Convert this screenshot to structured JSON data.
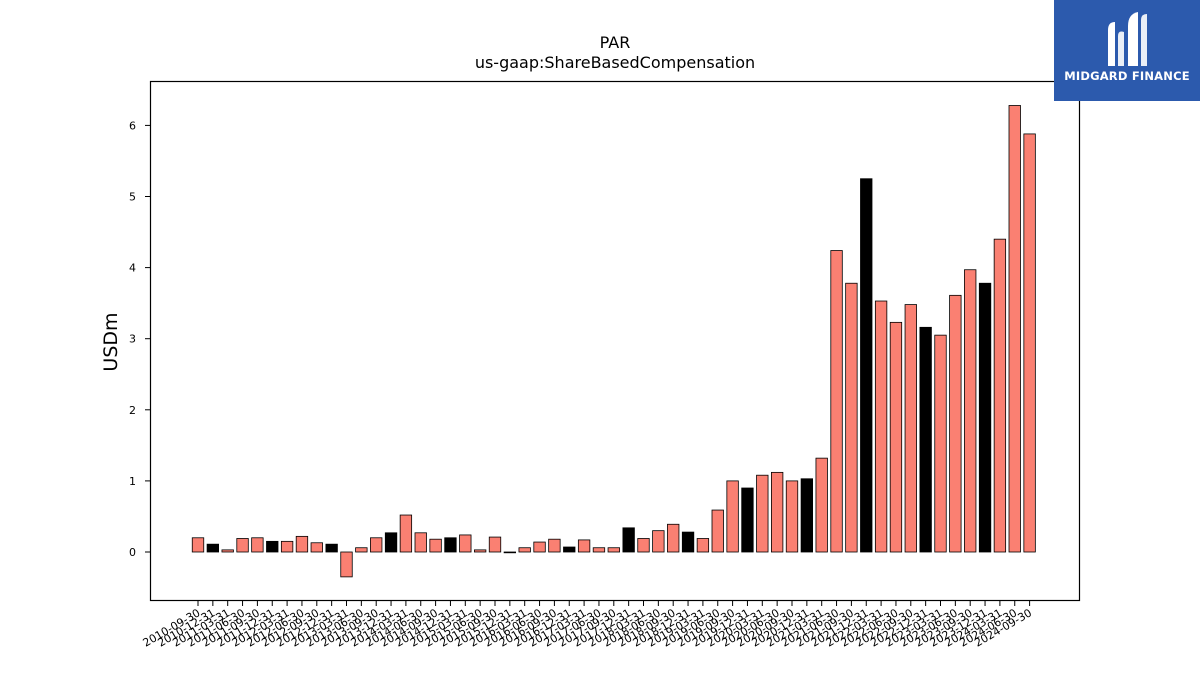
{
  "chart_data": {
    "type": "bar",
    "title": "PAR",
    "subtitle": "us-gaap:ShareBasedCompensation",
    "ylabel": "USDm",
    "ylim": [
      -0.68,
      6.62
    ],
    "yticks": [
      0,
      1,
      2,
      3,
      4,
      5,
      6
    ],
    "categories": [
      "2010-09-30",
      "2010-12-31",
      "2011-03-31",
      "2011-06-30",
      "2011-09-30",
      "2011-12-31",
      "2012-03-31",
      "2012-06-30",
      "2012-09-30",
      "2012-12-31",
      "2013-03-31",
      "2013-06-30",
      "2013-09-30",
      "2013-12-31",
      "2014-03-31",
      "2014-06-30",
      "2014-09-30",
      "2014-12-31",
      "2015-03-31",
      "2015-06-30",
      "2015-09-30",
      "2015-12-31",
      "2016-03-31",
      "2016-06-30",
      "2016-09-30",
      "2016-12-31",
      "2017-03-31",
      "2017-06-30",
      "2017-09-30",
      "2017-12-31",
      "2018-03-31",
      "2018-06-30",
      "2018-09-30",
      "2018-12-31",
      "2019-03-31",
      "2019-06-30",
      "2019-09-30",
      "2019-12-31",
      "2020-03-31",
      "2020-06-30",
      "2020-09-30",
      "2020-12-31",
      "2021-03-31",
      "2021-06-30",
      "2021-09-30",
      "2021-12-31",
      "2022-03-31",
      "2022-06-30",
      "2022-09-30",
      "2022-12-31",
      "2023-03-31",
      "2023-06-30",
      "2023-09-30",
      "2023-12-31",
      "2024-03-31",
      "2024-06-30",
      "2024-09-30"
    ],
    "values": [
      0.2,
      0.11,
      0.03,
      0.19,
      0.2,
      0.15,
      0.15,
      0.22,
      0.13,
      0.11,
      -0.35,
      0.06,
      0.2,
      0.27,
      0.52,
      0.27,
      0.18,
      0.2,
      0.24,
      0.03,
      0.21,
      0.0,
      0.06,
      0.14,
      0.18,
      0.07,
      0.17,
      0.06,
      0.06,
      0.34,
      0.19,
      0.3,
      0.39,
      0.28,
      0.19,
      0.59,
      1.0,
      0.9,
      1.08,
      1.12,
      1.0,
      1.03,
      1.32,
      4.24,
      3.78,
      5.25,
      3.53,
      3.23,
      3.48,
      3.16,
      3.05,
      3.61,
      3.97,
      3.78,
      4.4,
      6.28,
      5.88
    ],
    "highlight": [
      false,
      true,
      false,
      false,
      false,
      true,
      false,
      false,
      false,
      true,
      false,
      false,
      false,
      true,
      false,
      false,
      false,
      true,
      false,
      false,
      false,
      false,
      false,
      false,
      false,
      true,
      false,
      false,
      false,
      true,
      false,
      false,
      false,
      true,
      false,
      false,
      false,
      true,
      false,
      false,
      false,
      true,
      false,
      false,
      false,
      true,
      false,
      false,
      false,
      true,
      false,
      false,
      false,
      true,
      false,
      false,
      false
    ],
    "colors": {
      "bar": "#fa8072",
      "highlight_bar": "#000000",
      "edge": "#000000"
    },
    "grid": false,
    "legend": "none"
  },
  "logo": {
    "text": "MIDGARD FINANCE",
    "bg": "#2c5aad",
    "icon": "midgard-logo-icon"
  }
}
